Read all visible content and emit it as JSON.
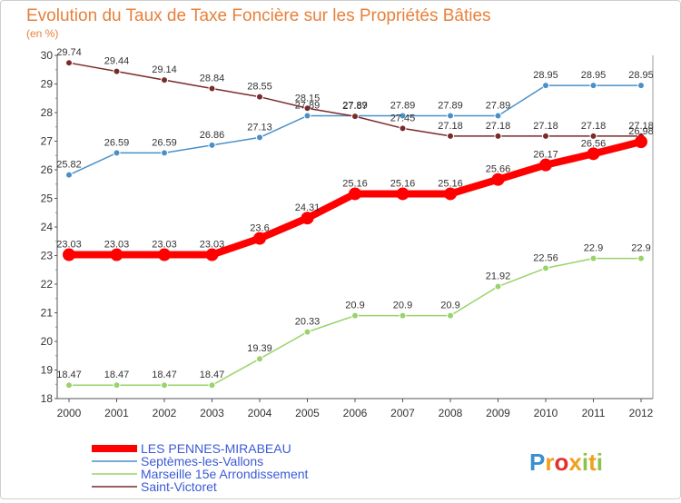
{
  "chart_data": {
    "type": "line",
    "title": "Evolution du Taux de Taxe Foncière sur les Propriétés Bâties",
    "subtitle": "(en %)",
    "xlabel": "",
    "ylabel": "",
    "x": [
      "2000",
      "2001",
      "2002",
      "2003",
      "2004",
      "2005",
      "2006",
      "2007",
      "2008",
      "2009",
      "2010",
      "2011",
      "2012"
    ],
    "ylim": [
      18,
      30
    ],
    "yticks": [
      18,
      19,
      20,
      21,
      22,
      23,
      24,
      25,
      26,
      27,
      28,
      29,
      30
    ],
    "grid": false,
    "legend_position": "bottom-left",
    "series": [
      {
        "name": "LES PENNES-MIRABEAU",
        "color": "#ff0000",
        "values": [
          23.03,
          23.03,
          23.03,
          23.03,
          23.6,
          24.31,
          25.16,
          25.16,
          25.16,
          25.66,
          26.17,
          26.56,
          26.98
        ],
        "labels": [
          "23.03",
          "23.03",
          "23.03",
          "23.03",
          "23.6",
          "24.31",
          "25.16",
          "25.16",
          "25.16",
          "25.66",
          "26.17",
          "26.56",
          "26.98"
        ]
      },
      {
        "name": "Septèmes-les-Vallons",
        "color": "#4a90c8",
        "values": [
          25.82,
          26.59,
          26.59,
          26.86,
          27.13,
          27.89,
          27.89,
          27.89,
          27.89,
          27.89,
          28.95,
          28.95,
          28.95
        ],
        "labels": [
          "25.82",
          "26.59",
          "26.59",
          "26.86",
          "27.13",
          "27.89",
          "27.89",
          "27.89",
          "27.89",
          "27.89",
          "28.95",
          "28.95",
          "28.95"
        ]
      },
      {
        "name": "Marseille 15e  Arrondissement",
        "color": "#99d36b",
        "values": [
          18.47,
          18.47,
          18.47,
          18.47,
          19.39,
          20.33,
          20.9,
          20.9,
          20.9,
          21.92,
          22.56,
          22.9,
          22.9
        ],
        "labels": [
          "18.47",
          "18.47",
          "18.47",
          "18.47",
          "19.39",
          "20.33",
          "20.9",
          "20.9",
          "20.9",
          "21.92",
          "22.56",
          "22.9",
          "22.9"
        ]
      },
      {
        "name": "Saint-Victoret",
        "color": "#7a2a2a",
        "values": [
          29.74,
          29.44,
          29.14,
          28.84,
          28.55,
          28.15,
          27.87,
          27.45,
          27.18,
          27.18,
          27.18,
          27.18,
          27.18
        ],
        "labels": [
          "29.74",
          "29.44",
          "29.14",
          "28.84",
          "28.55",
          "28.15",
          "27.87",
          "27.45",
          "27.18",
          "27.18",
          "27.18",
          "27.18",
          "27.18"
        ]
      }
    ]
  },
  "logo": {
    "text": "Proxiti",
    "letters": [
      "P",
      "r",
      "o",
      "x",
      "i",
      "t",
      "i"
    ],
    "letter_colors": [
      "#3a8fd0",
      "#f0a020",
      "#e03030",
      "#f0a020",
      "#8bc34a",
      "#f0a020",
      "#8bc34a"
    ]
  }
}
